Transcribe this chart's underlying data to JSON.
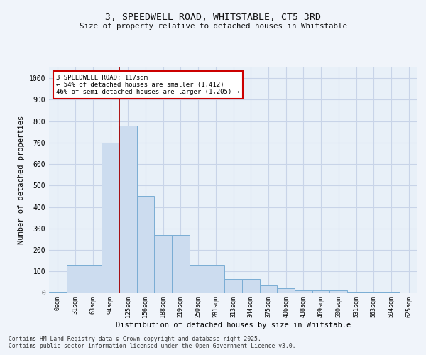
{
  "title1": "3, SPEEDWELL ROAD, WHITSTABLE, CT5 3RD",
  "title2": "Size of property relative to detached houses in Whitstable",
  "xlabel": "Distribution of detached houses by size in Whitstable",
  "ylabel": "Number of detached properties",
  "categories": [
    "0sqm",
    "31sqm",
    "63sqm",
    "94sqm",
    "125sqm",
    "156sqm",
    "188sqm",
    "219sqm",
    "250sqm",
    "281sqm",
    "313sqm",
    "344sqm",
    "375sqm",
    "406sqm",
    "438sqm",
    "469sqm",
    "500sqm",
    "531sqm",
    "563sqm",
    "594sqm",
    "625sqm"
  ],
  "bar_values": [
    5,
    130,
    130,
    700,
    780,
    450,
    270,
    270,
    130,
    130,
    65,
    65,
    35,
    20,
    10,
    10,
    10,
    5,
    5,
    5,
    0
  ],
  "bar_color": "#ccdcef",
  "bar_edge_color": "#7aadd4",
  "bg_color": "#e8f0f8",
  "grid_color": "#c8d4e8",
  "annotation_text": "3 SPEEDWELL ROAD: 117sqm\n← 54% of detached houses are smaller (1,412)\n46% of semi-detached houses are larger (1,205) →",
  "vline_color": "#aa0000",
  "annotation_box_edge": "#cc0000",
  "footer_text": "Contains HM Land Registry data © Crown copyright and database right 2025.\nContains public sector information licensed under the Open Government Licence v3.0.",
  "ylim": [
    0,
    1050
  ],
  "yticks": [
    0,
    100,
    200,
    300,
    400,
    500,
    600,
    700,
    800,
    900,
    1000
  ],
  "fig_bg": "#f0f4fa"
}
